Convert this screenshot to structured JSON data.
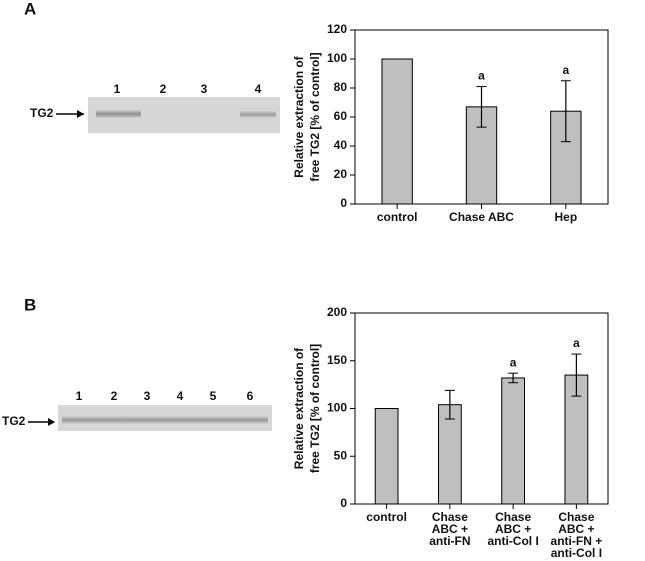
{
  "chart_data": [
    {
      "type": "bar",
      "y_label": [
        "Relative extraction of",
        "free TG2 [% of control]"
      ],
      "categories": [
        [
          "control"
        ],
        [
          "Chase ABC"
        ],
        [
          "Hep"
        ]
      ],
      "values": [
        100,
        67,
        64
      ],
      "errors": [
        null,
        14,
        21
      ],
      "annotations": [
        null,
        "a",
        "a"
      ],
      "color": "#bfbfbf",
      "ylim": [
        0,
        120
      ],
      "yticks": [
        0,
        20,
        40,
        60,
        80,
        100,
        120
      ]
    },
    {
      "type": "bar",
      "y_label": [
        "Relative extraction of",
        "free TG2 [% of control]"
      ],
      "categories": [
        [
          "control"
        ],
        [
          "Chase",
          "ABC +",
          "anti-FN"
        ],
        [
          "Chase",
          "ABC +",
          "anti-Col I"
        ],
        [
          "Chase",
          "ABC +",
          "anti-FN +",
          "anti-Col I"
        ]
      ],
      "values": [
        100,
        104,
        132,
        135
      ],
      "errors": [
        null,
        15,
        5,
        22
      ],
      "annotations": [
        null,
        null,
        "a",
        "a"
      ],
      "color": "#bfbfbf",
      "ylim": [
        0,
        200
      ],
      "yticks": [
        0,
        50,
        100,
        150,
        200
      ]
    }
  ],
  "panels": [
    {
      "label": "A",
      "marker": "TG2",
      "lanes": [
        "1",
        "2",
        "3",
        "4"
      ]
    },
    {
      "label": "B",
      "marker": "TG2",
      "lanes": [
        "1",
        "2",
        "3",
        "4",
        "5",
        "6"
      ]
    }
  ]
}
